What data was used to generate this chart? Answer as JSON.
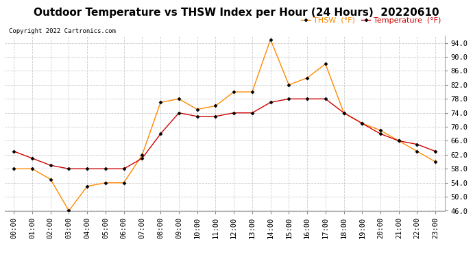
{
  "title": "Outdoor Temperature vs THSW Index per Hour (24 Hours)  20220610",
  "copyright": "Copyright 2022 Cartronics.com",
  "legend_thsw": "THSW  (°F)",
  "legend_temp": "Temperature  (°F)",
  "hours": [
    "00:00",
    "01:00",
    "02:00",
    "03:00",
    "04:00",
    "05:00",
    "06:00",
    "07:00",
    "08:00",
    "09:00",
    "10:00",
    "11:00",
    "12:00",
    "13:00",
    "14:00",
    "15:00",
    "16:00",
    "17:00",
    "18:00",
    "19:00",
    "20:00",
    "21:00",
    "22:00",
    "23:00"
  ],
  "temperature": [
    63,
    61,
    59,
    58,
    58,
    58,
    58,
    61,
    68,
    74,
    73,
    73,
    74,
    74,
    77,
    78,
    78,
    78,
    74,
    71,
    68,
    66,
    65,
    63
  ],
  "thsw": [
    58,
    58,
    55,
    46,
    53,
    54,
    54,
    62,
    77,
    78,
    75,
    76,
    80,
    80,
    95,
    82,
    84,
    88,
    74,
    71,
    69,
    66,
    63,
    60
  ],
  "temp_color": "#cc0000",
  "thsw_color": "#ff8800",
  "marker": "D",
  "marker_color": "#000000",
  "marker_size": 2.5,
  "ylim": [
    46,
    96
  ],
  "yticks": [
    46.0,
    50.0,
    54.0,
    58.0,
    62.0,
    66.0,
    70.0,
    74.0,
    78.0,
    82.0,
    86.0,
    90.0,
    94.0
  ],
  "bg_color": "#ffffff",
  "grid_color": "#cccccc",
  "title_fontsize": 11,
  "tick_fontsize": 7.5,
  "legend_fontsize": 8,
  "copyright_fontsize": 6.5
}
